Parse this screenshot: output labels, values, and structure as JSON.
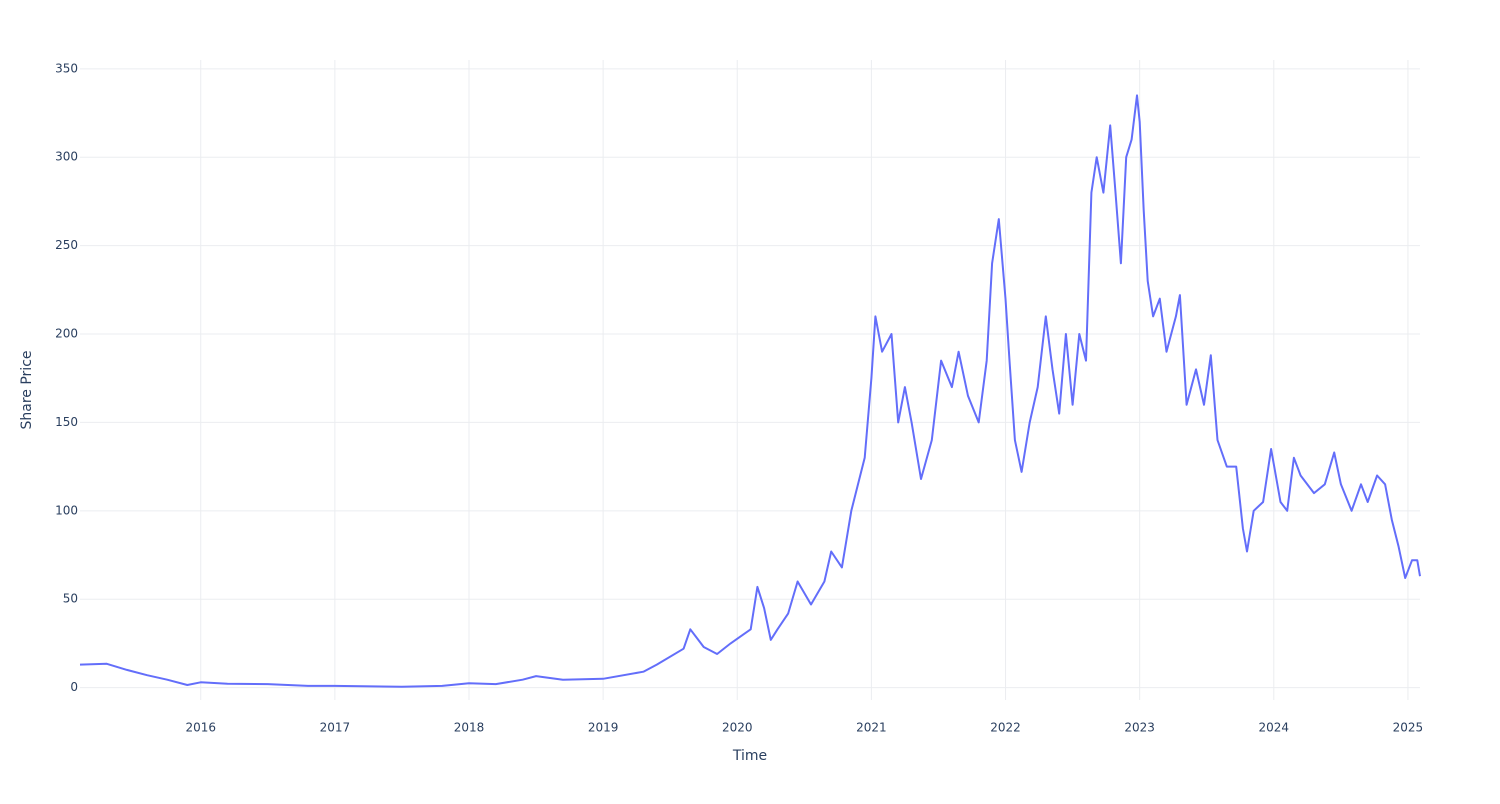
{
  "chart_data": {
    "type": "line",
    "xlabel": "Time",
    "ylabel": "Share Price",
    "x": [
      2015.1,
      2015.3,
      2015.45,
      2015.6,
      2015.75,
      2015.9,
      2016.0,
      2016.2,
      2016.5,
      2016.8,
      2017.0,
      2017.5,
      2017.8,
      2018.0,
      2018.2,
      2018.4,
      2018.5,
      2018.7,
      2019.0,
      2019.3,
      2019.4,
      2019.6,
      2019.65,
      2019.75,
      2019.85,
      2019.95,
      2020.1,
      2020.15,
      2020.2,
      2020.25,
      2020.3,
      2020.38,
      2020.45,
      2020.55,
      2020.65,
      2020.7,
      2020.78,
      2020.85,
      2020.9,
      2020.95,
      2021.0,
      2021.03,
      2021.08,
      2021.15,
      2021.2,
      2021.25,
      2021.3,
      2021.37,
      2021.45,
      2021.52,
      2021.6,
      2021.65,
      2021.72,
      2021.8,
      2021.86,
      2021.9,
      2021.95,
      2022.0,
      2022.03,
      2022.07,
      2022.12,
      2022.18,
      2022.24,
      2022.3,
      2022.35,
      2022.4,
      2022.45,
      2022.5,
      2022.55,
      2022.6,
      2022.64,
      2022.68,
      2022.73,
      2022.78,
      2022.82,
      2022.86,
      2022.9,
      2022.94,
      2022.98,
      2023.0,
      2023.03,
      2023.06,
      2023.1,
      2023.15,
      2023.2,
      2023.27,
      2023.3,
      2023.35,
      2023.42,
      2023.48,
      2023.53,
      2023.58,
      2023.65,
      2023.72,
      2023.77,
      2023.8,
      2023.85,
      2023.92,
      2023.98,
      2024.05,
      2024.1,
      2024.15,
      2024.2,
      2024.3,
      2024.38,
      2024.45,
      2024.5,
      2024.58,
      2024.65,
      2024.7,
      2024.77,
      2024.83,
      2024.88,
      2024.93,
      2024.98,
      2025.03,
      2025.07,
      2025.09
    ],
    "series": [
      {
        "name": "Share Price",
        "color": "#636efa",
        "values": [
          13,
          13.5,
          10,
          7,
          4.5,
          1.5,
          3,
          2.2,
          2,
          1,
          1,
          0.5,
          1,
          2.5,
          2,
          4.5,
          6.5,
          4.5,
          5,
          9,
          13,
          22,
          33,
          23,
          19,
          25,
          33,
          57,
          45,
          27,
          33,
          42,
          60,
          47,
          60,
          77,
          68,
          100,
          115,
          130,
          175,
          210,
          190,
          200,
          150,
          170,
          150,
          118,
          140,
          185,
          170,
          190,
          165,
          150,
          185,
          240,
          265,
          220,
          185,
          140,
          122,
          150,
          170,
          210,
          180,
          155,
          200,
          160,
          200,
          185,
          280,
          300,
          280,
          318,
          280,
          240,
          300,
          310,
          335,
          320,
          270,
          230,
          210,
          220,
          190,
          210,
          222,
          160,
          180,
          160,
          188,
          140,
          125,
          125,
          90,
          77,
          100,
          105,
          135,
          105,
          100,
          130,
          120,
          110,
          115,
          133,
          115,
          100,
          115,
          105,
          120,
          115,
          95,
          80,
          62,
          72,
          72,
          63
        ]
      }
    ],
    "xlim": [
      2015.1,
      2025.09
    ],
    "ylim": [
      -7,
      355
    ],
    "xticks": [
      2016,
      2017,
      2018,
      2019,
      2020,
      2021,
      2022,
      2023,
      2024,
      2025
    ],
    "yticks": [
      0,
      50,
      100,
      150,
      200,
      250,
      300,
      350
    ],
    "grid": true
  }
}
